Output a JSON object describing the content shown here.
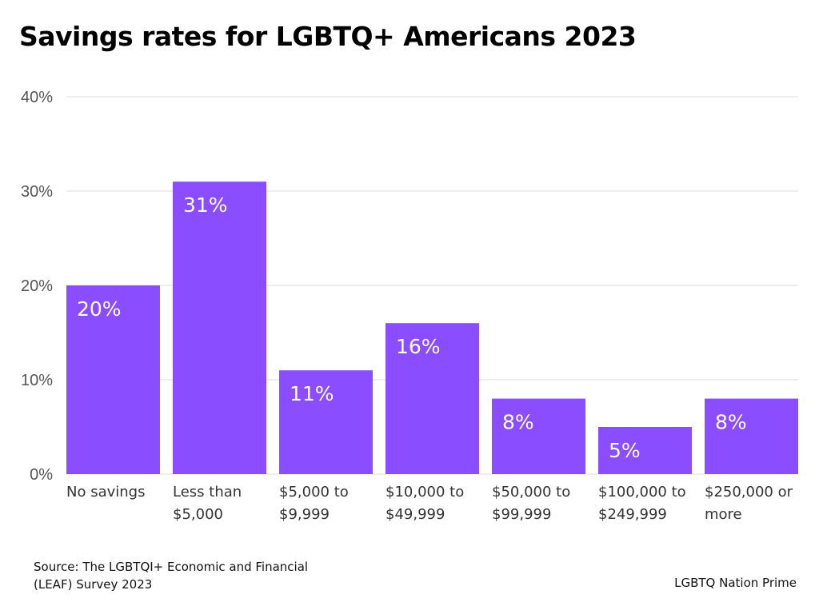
{
  "title": "Savings rates for LGBTQ+ Americans 2023",
  "footer": {
    "source_line1": "Source: The LGBTQI+ Economic and Financial",
    "source_line2": "(LEAF) Survey 2023",
    "credit": "LGBTQ Nation Prime"
  },
  "colors": {
    "bar": "#8a4dff",
    "grid": "#dddddd"
  },
  "chart_data": {
    "type": "bar",
    "title": "Savings rates for LGBTQ+ Americans 2023",
    "categories": [
      [
        "No savings"
      ],
      [
        "Less than",
        "$5,000"
      ],
      [
        "$5,000 to",
        "$9,999"
      ],
      [
        "$10,000 to",
        "$49,999"
      ],
      [
        "$50,000 to",
        "$99,999"
      ],
      [
        "$100,000 to",
        "$249,999"
      ],
      [
        "$250,000 or",
        "more"
      ]
    ],
    "values": [
      20,
      31,
      11,
      16,
      8,
      5,
      8
    ],
    "data_labels": [
      "20%",
      "31%",
      "11%",
      "16%",
      "8%",
      "5%",
      "8%"
    ],
    "yticks": [
      0,
      10,
      20,
      30,
      40
    ],
    "ytick_labels": [
      "0%",
      "10%",
      "20%",
      "30%",
      "40%"
    ],
    "ylim": [
      0,
      40
    ],
    "grid": true,
    "legend": "none"
  }
}
